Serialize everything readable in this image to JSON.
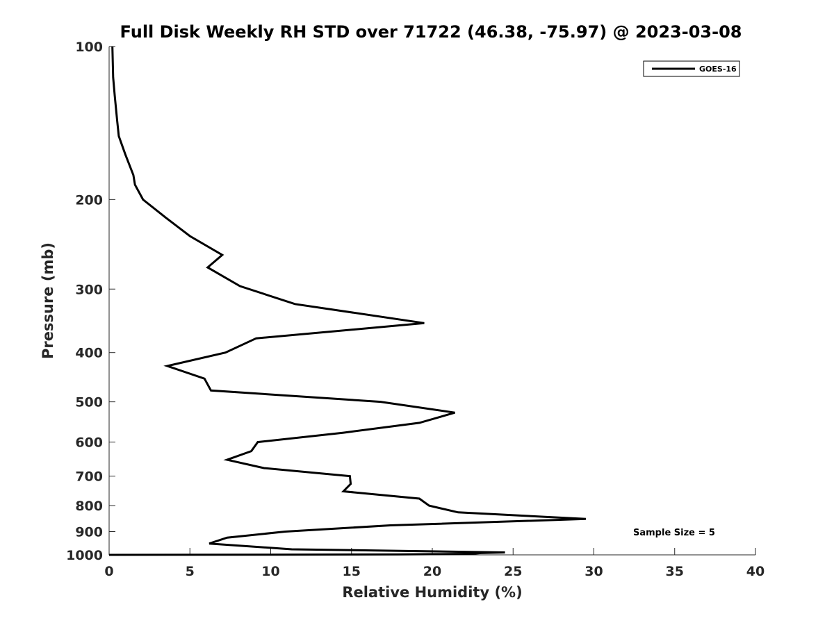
{
  "chart_data": {
    "type": "line",
    "title": "Full Disk Weekly RH STD over 71722 (46.38, -75.97) @ 2023-03-08",
    "xlabel": "Relative Humidity (%)",
    "ylabel": "Pressure (mb)",
    "xlim": [
      0,
      40
    ],
    "ylim": [
      1000,
      100
    ],
    "yscale": "log",
    "x_ticks": [
      0,
      5,
      10,
      15,
      20,
      25,
      30,
      35,
      40
    ],
    "y_ticks": [
      100,
      200,
      300,
      400,
      500,
      600,
      700,
      800,
      900,
      1000
    ],
    "legend_position": "top-right",
    "series": [
      {
        "name": "GOES-16",
        "color": "#000000",
        "x": [
          0.2,
          0.25,
          0.35,
          0.5,
          0.6,
          1.0,
          1.5,
          1.6,
          2.1,
          3.5,
          5.0,
          7.0,
          6.1,
          8.1,
          11.5,
          19.5,
          9.1,
          7.2,
          3.6,
          5.9,
          6.3,
          16.8,
          21.4,
          19.2,
          14.5,
          9.2,
          8.8,
          7.3,
          9.6,
          14.9,
          14.95,
          14.5,
          19.2,
          19.8,
          21.6,
          29.5,
          17.4,
          10.9,
          7.3,
          6.2,
          11.3,
          24.5,
          23.0,
          22.5,
          17.9,
          17.9,
          10.0,
          0.0
        ],
        "y": [
          100,
          115,
          125,
          140,
          150,
          163,
          179,
          187,
          200,
          217,
          236,
          257,
          272,
          296,
          321,
          350,
          375,
          400,
          425,
          450,
          475,
          500,
          525,
          550,
          575,
          600,
          625,
          650,
          675,
          700,
          725,
          750,
          775,
          800,
          825,
          850,
          875,
          900,
          925,
          950,
          975,
          989,
          992,
          995,
          998,
          998,
          999,
          1000
        ]
      }
    ],
    "annotations": [
      "Sample Size = 5"
    ]
  }
}
